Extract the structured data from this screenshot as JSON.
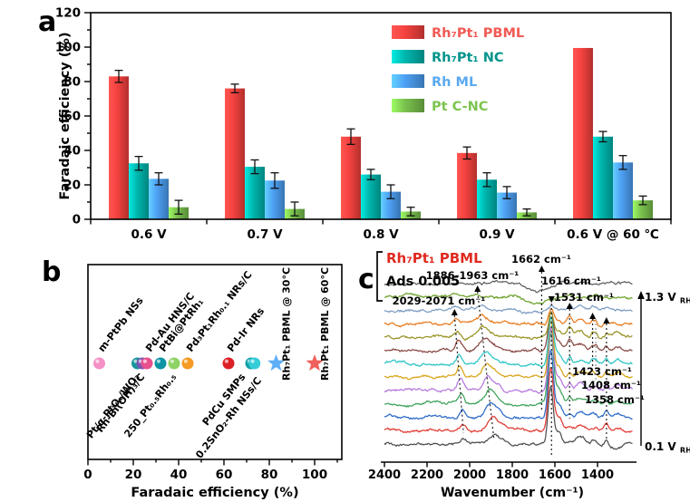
{
  "panels": {
    "a": {
      "letter": "a"
    },
    "b": {
      "letter": "b"
    },
    "c": {
      "letter": "c"
    }
  },
  "chart_data": [
    {
      "id": "a",
      "type": "bar",
      "ylabel": "Faradaic efficiency (%)",
      "ylim": [
        0,
        120
      ],
      "ytick_step": 20,
      "yticks": [
        0,
        20,
        40,
        60,
        80,
        100,
        120
      ],
      "categories": [
        "0.6 V",
        "0.7 V",
        "0.8 V",
        "0.9 V",
        "0.6 V @ 60 ℃"
      ],
      "grid": false,
      "legend_position": "top-right",
      "series": [
        {
          "name": "Rh₇Pt₁ PBML",
          "color": "#f0413e",
          "label_color": "#f25a55",
          "values": [
            83,
            76,
            48,
            38.5,
            99.5
          ],
          "errors": [
            3.5,
            2.5,
            4.5,
            3.5,
            0
          ]
        },
        {
          "name": "Rh₇Pt₁ NC",
          "color": "#00b3ab",
          "label_color": "#00948c",
          "values": [
            32.5,
            30.5,
            26,
            23,
            48
          ],
          "errors": [
            4,
            4,
            3,
            4,
            3
          ]
        },
        {
          "name": "Rh ML",
          "color": "#4c9ef0",
          "label_color": "#5aa9f0",
          "values": [
            23.5,
            22.5,
            16,
            15.5,
            33
          ],
          "errors": [
            3.5,
            4.5,
            4,
            3.5,
            4
          ]
        },
        {
          "name": "Pt C-NC",
          "color": "#78be4c",
          "label_color": "#7cc450",
          "values": [
            7,
            6,
            4.5,
            4,
            11
          ],
          "errors": [
            4,
            4,
            2.5,
            2,
            2.5
          ]
        }
      ]
    },
    {
      "id": "b",
      "type": "scatter",
      "xlabel": "Faradaic efficiency (%)",
      "xlim": [
        0,
        112
      ],
      "xticks": [
        0,
        20,
        40,
        60,
        80,
        100
      ],
      "points": [
        {
          "label": "m-PtPb NSs",
          "x": 5,
          "marker": "circle",
          "color": "#f590c6",
          "label_side": "above",
          "label_rotation": 52
        },
        {
          "label": "Pt/α-PtOₓ/WO₃",
          "x": 21.8,
          "marker": "circle",
          "color": "#18969c",
          "label_side": "below",
          "label_rotation": 52
        },
        {
          "label": "Rh-Bi(OH)₃/C",
          "x": 24,
          "marker": "circle",
          "color": "#7d55b4",
          "label_side": "below",
          "label_rotation": 52
        },
        {
          "label": "Pd-Au HNS/C",
          "x": 26,
          "marker": "circle",
          "color": "#e8508e",
          "label_side": "above",
          "label_rotation": 52
        },
        {
          "label": "PtBi@PtRh₁",
          "x": 32,
          "marker": "circle",
          "color": "#0e95a5",
          "label_side": "above",
          "label_rotation": 52
        },
        {
          "label": "250_Pt₀.₅Rh₀.₅",
          "x": 38,
          "marker": "circle",
          "color": "#8fd265",
          "label_side": "below",
          "label_rotation": 52
        },
        {
          "label": "Pd₃Pt₁Rh₀.₁ NRs/C",
          "x": 44,
          "marker": "circle",
          "color": "#f59a23",
          "label_side": "above",
          "label_rotation": 52
        },
        {
          "label": "Pd-Ir NRs",
          "x": 62,
          "marker": "circle",
          "color": "#dd1f26",
          "label_side": "above",
          "label_rotation": 52
        },
        {
          "label": "PdCu SMPs",
          "x": 72,
          "marker": "circle",
          "color": "#12a0a8",
          "label_side": "below",
          "label_rotation": 52
        },
        {
          "label": "0.2SnO₂-Rh NSs/C",
          "x": 73.5,
          "marker": "circle",
          "color": "#35cdd8",
          "label_side": "below",
          "label_rotation": 52
        },
        {
          "label": "Rh₇Pt₁ PBML @ 30°C",
          "x": 83,
          "marker": "star",
          "color": "#5faff8",
          "label_side": "right-vertical",
          "label_rotation": 90
        },
        {
          "label": "Rh₇Pt₁ PBML @ 60°C",
          "x": 100,
          "marker": "star",
          "color": "#f0615c",
          "label_side": "right-vertical",
          "label_rotation": 90
        }
      ]
    },
    {
      "id": "c",
      "type": "line",
      "title": "Rh₇Pt₁ PBML",
      "title_color": "#e02a20",
      "scalebar_label": "Ads 0.005",
      "xlabel": "Wavenumber (cm⁻¹)",
      "x_reversed": true,
      "xlim": [
        2400,
        1235
      ],
      "xticks": [
        2400,
        2200,
        2000,
        1800,
        1600,
        1400
      ],
      "right_axis": {
        "top_label": {
          "main": "1.3 V",
          "sub": "RHE"
        },
        "bottom_label": {
          "main": "0.1 V",
          "sub": "RHE"
        }
      },
      "series_colors_bottom_to_top": [
        "#4f4f4f",
        "#e03c34",
        "#2e6bc8",
        "#3fa35c",
        "#b678de",
        "#d9a418",
        "#2bc4c4",
        "#8a4a44",
        "#9a9426",
        "#e87b1e",
        "#7f9ec4",
        "#6ea32f",
        "#606060"
      ],
      "annotations": [
        {
          "text": "2029-2071 cm⁻¹",
          "w_from": 2071,
          "w_to": 2029,
          "arrow": "up"
        },
        {
          "text": "1886-1963 cm⁻¹",
          "w_from": 1963,
          "w_to": 1886,
          "arrow": "up"
        },
        {
          "text": "1662 cm⁻¹",
          "w_from": 1662,
          "w_to": 1662,
          "arrow": "up"
        },
        {
          "text": "1616 cm⁻¹",
          "w_from": 1616,
          "w_to": 1616,
          "arrow": "down"
        },
        {
          "text": "1531 cm⁻¹",
          "w_from": 1531,
          "w_to": 1531,
          "arrow": "up"
        },
        {
          "text": "1423 cm⁻¹",
          "w_from": 1423,
          "w_to": 1423,
          "arrow": "up"
        },
        {
          "text": "1408 cm⁻¹",
          "w_from": 1408,
          "w_to": 1408,
          "arrow": "none"
        },
        {
          "text": "1358 cm⁻¹",
          "w_from": 1358,
          "w_to": 1358,
          "arrow": "up"
        }
      ]
    }
  ]
}
